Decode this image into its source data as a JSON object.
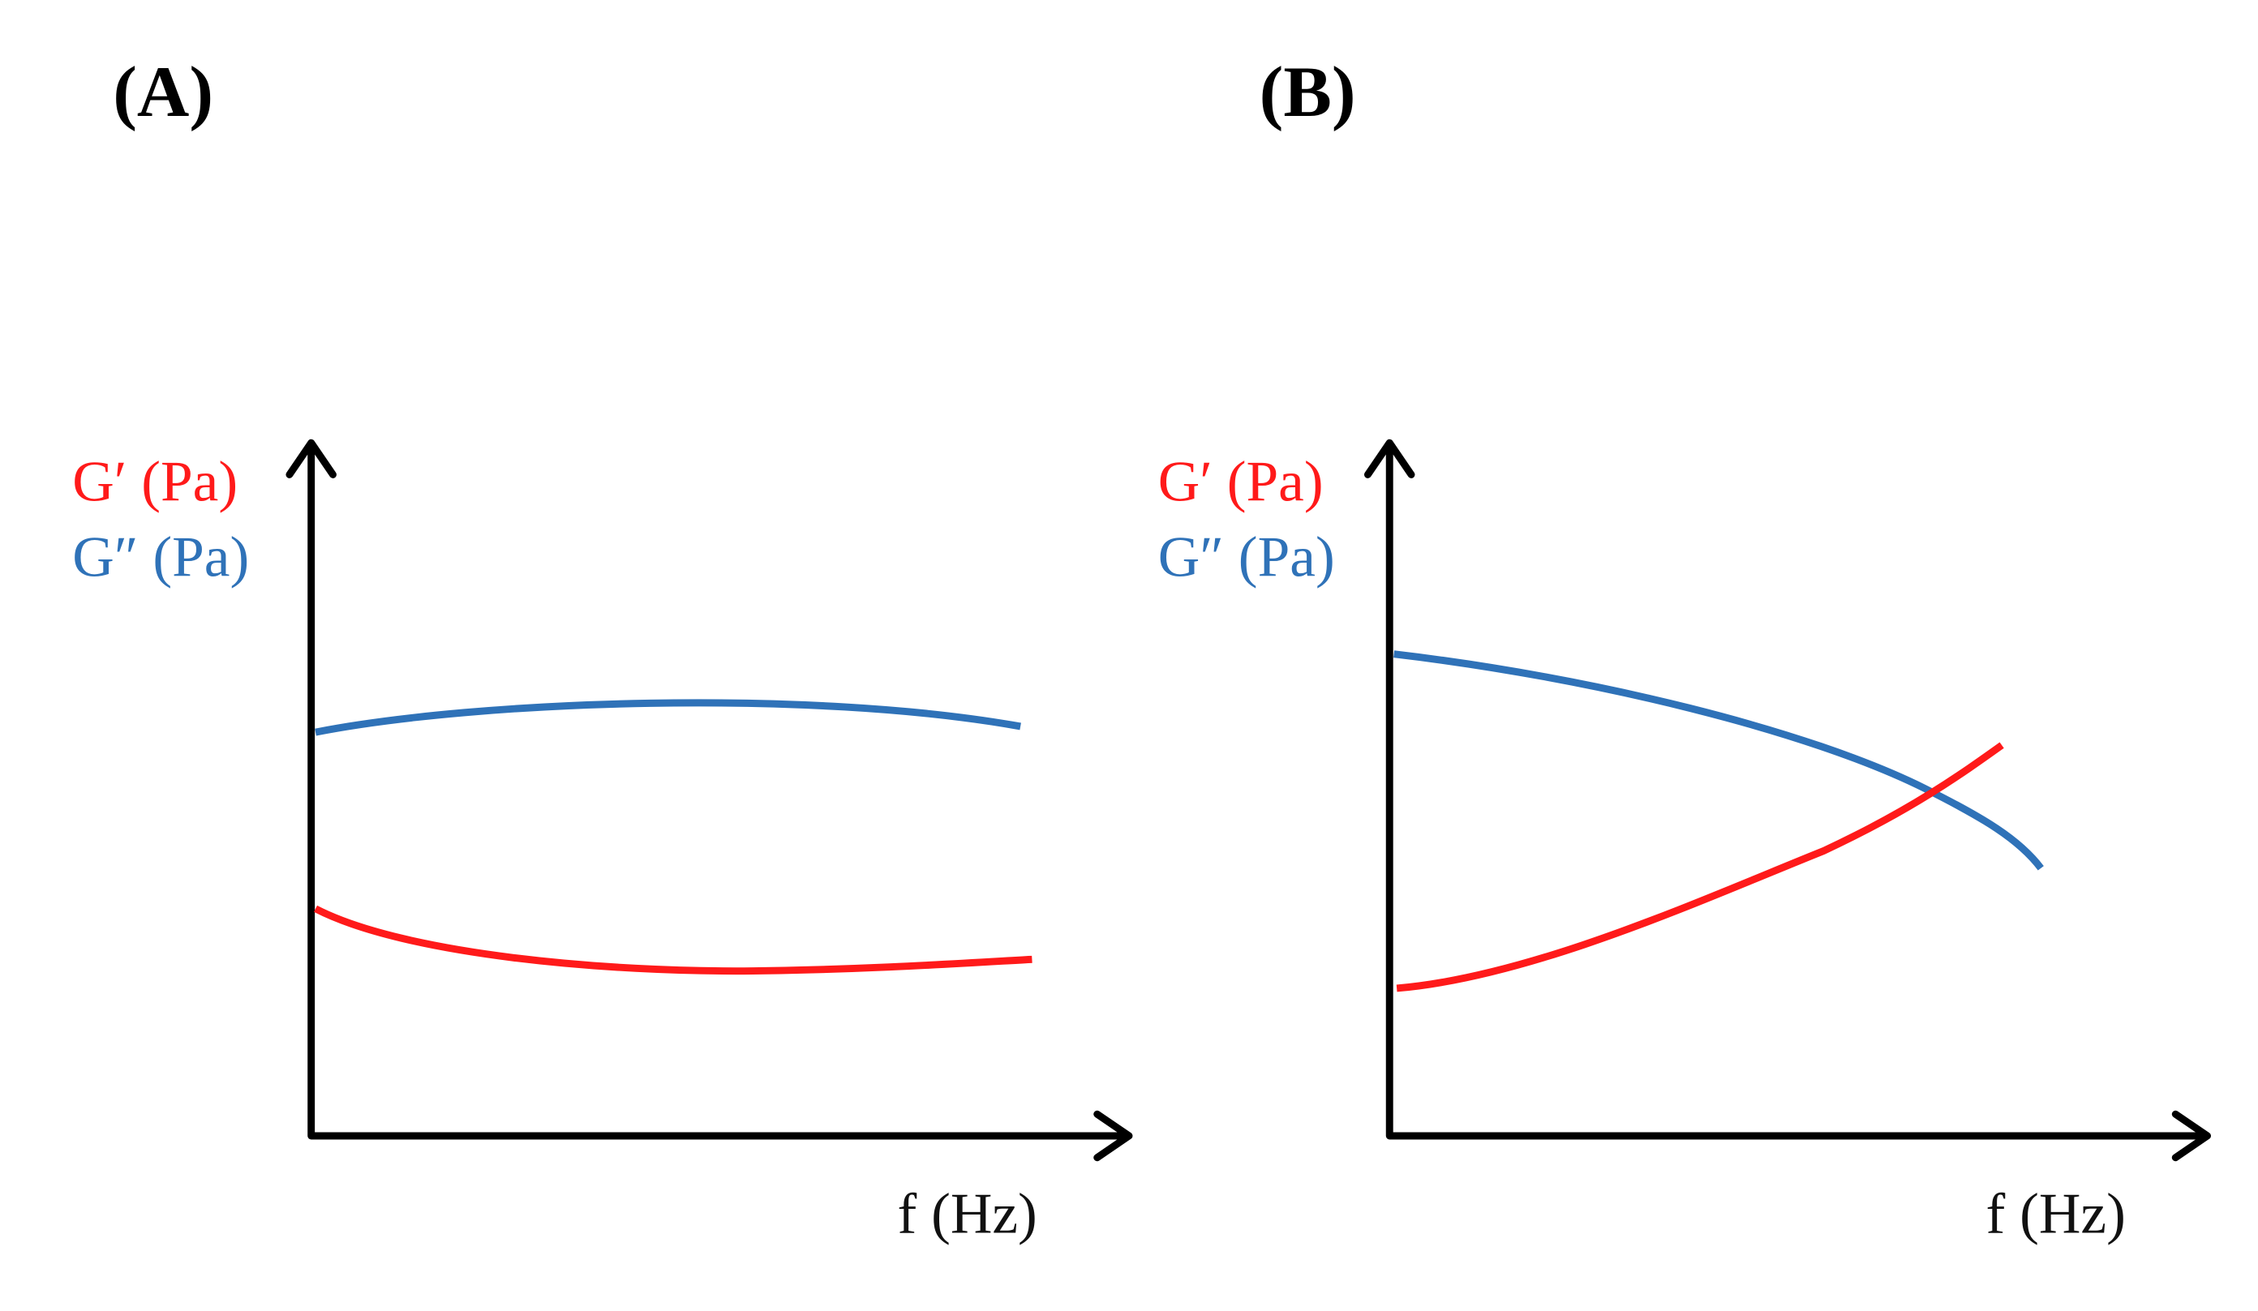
{
  "panels": [
    {
      "label": "(A)",
      "y_labels": [
        "G′ (Pa)",
        "G″ (Pa)"
      ],
      "x_label": "f (Hz)"
    },
    {
      "label": "(B)",
      "y_labels": [
        "G′ (Pa)",
        "G″ (Pa)"
      ],
      "x_label": "f (Hz)"
    }
  ]
}
